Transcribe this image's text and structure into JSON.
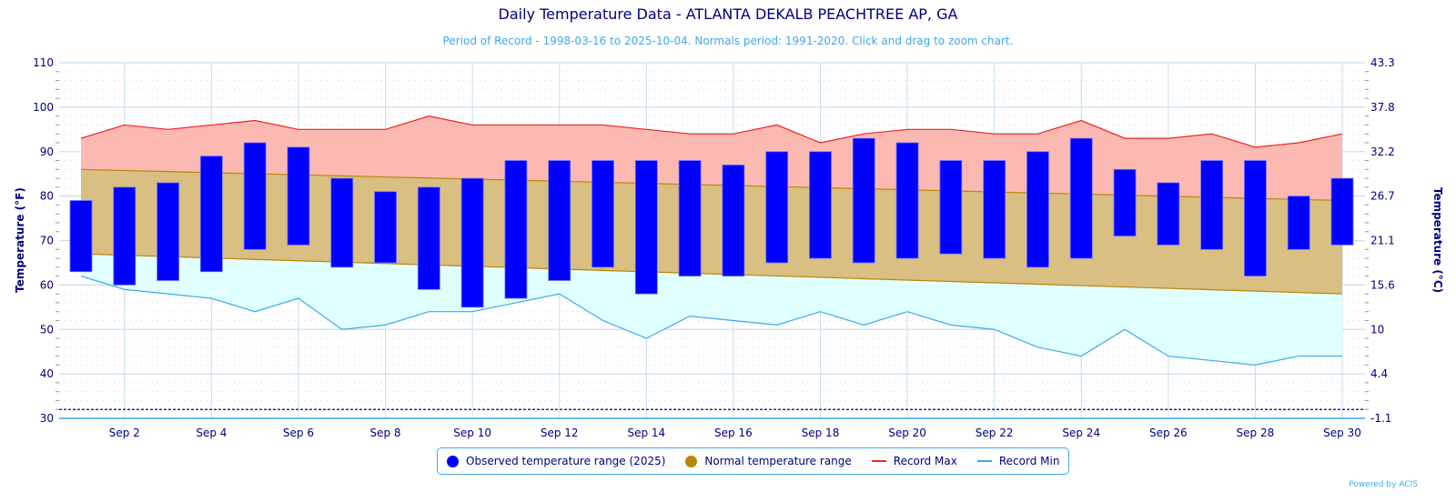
{
  "header": {
    "title": "Daily Temperature Data - ATLANTA DEKALB PEACHTREE AP, GA",
    "subtitle": "Period of Record - 1998-03-16 to 2025-10-04. Normals period: 1991-2020. Click and drag to zoom chart."
  },
  "credits": "Powered by ACIS",
  "colors": {
    "observed": "#0000ff",
    "normal_fill": "#d9bf81",
    "normal_line": "#b8860b",
    "record_max_line": "#ee2222",
    "record_max_fill": "#fcb9b2",
    "record_min_line": "#3fa9e8",
    "record_min_fill": "#e0ffff",
    "axis_text": "#000080",
    "grid": "#c6def0",
    "freeze_line": "#000090"
  },
  "legend": {
    "items": [
      {
        "label": "Observed temperature range (2025)",
        "symbol": "dot",
        "color": "#0000ff"
      },
      {
        "label": "Normal temperature range",
        "symbol": "dot",
        "color": "#b8860b"
      },
      {
        "label": "Record Max",
        "symbol": "line",
        "color": "#ee2222"
      },
      {
        "label": "Record Min",
        "symbol": "line",
        "color": "#3fa9e8"
      }
    ]
  },
  "chart_data": {
    "type": "bar",
    "title": "Daily Temperature Data - ATLANTA DEKALB PEACHTREE AP, GA",
    "subtitle": "Period of Record - 1998-03-16 to 2025-10-04. Normals period: 1991-2020. Click and drag to zoom chart.",
    "xlabel": "",
    "ylabel": "Temperature (°F)",
    "ylabel_right": "Temperature (°C)",
    "ylim": [
      30,
      110
    ],
    "yticks": [
      30,
      40,
      50,
      60,
      70,
      80,
      90,
      100,
      110
    ],
    "yticks_right": [
      "-1.1",
      "4.4",
      "10",
      "15.6",
      "21.1",
      "26.7",
      "32.2",
      "37.8",
      "43.3"
    ],
    "freezing_line": 32,
    "x": [
      1,
      2,
      3,
      4,
      5,
      6,
      7,
      8,
      9,
      10,
      11,
      12,
      13,
      14,
      15,
      16,
      17,
      18,
      19,
      20,
      21,
      22,
      23,
      24,
      25,
      26,
      27,
      28,
      29,
      30
    ],
    "x_tick_labels": [
      "Sep 2",
      "Sep 4",
      "Sep 6",
      "Sep 8",
      "Sep 10",
      "Sep 12",
      "Sep 14",
      "Sep 16",
      "Sep 18",
      "Sep 20",
      "Sep 22",
      "Sep 24",
      "Sep 26",
      "Sep 28",
      "Sep 30"
    ],
    "x_tick_days": [
      2,
      4,
      6,
      8,
      10,
      12,
      14,
      16,
      18,
      20,
      22,
      24,
      26,
      28,
      30
    ],
    "grid": true,
    "legend_position": "bottom-center",
    "series": [
      {
        "name": "Observed temperature range (2025)",
        "kind": "range-bar",
        "high": [
          79,
          82,
          83,
          89,
          92,
          91,
          84,
          81,
          82,
          84,
          88,
          88,
          88,
          88,
          88,
          87,
          90,
          90,
          93,
          92,
          88,
          88,
          90,
          93,
          86,
          83,
          88,
          88,
          80,
          84
        ],
        "low": [
          63,
          60,
          61,
          63,
          68,
          69,
          64,
          65,
          59,
          55,
          57,
          61,
          64,
          58,
          62,
          62,
          65,
          66,
          65,
          66,
          67,
          66,
          64,
          66,
          71,
          69,
          68,
          62,
          68,
          69
        ]
      },
      {
        "name": "Normal temperature range",
        "kind": "range-area",
        "high_start": 86,
        "high_end": 79,
        "low_start": 67,
        "low_end": 58
      },
      {
        "name": "Record Max",
        "kind": "line",
        "values": [
          93,
          96,
          95,
          96,
          97,
          95,
          95,
          95,
          98,
          96,
          96,
          96,
          96,
          95,
          94,
          94,
          96,
          92,
          94,
          95,
          95,
          94,
          94,
          97,
          93,
          93,
          94,
          91,
          92,
          94
        ]
      },
      {
        "name": "Record Min",
        "kind": "line",
        "values": [
          62,
          59,
          58,
          57,
          54,
          57,
          50,
          51,
          54,
          54,
          56,
          58,
          52,
          48,
          53,
          52,
          51,
          54,
          51,
          54,
          51,
          50,
          46,
          44,
          50,
          44,
          43,
          42,
          44,
          44
        ]
      }
    ]
  }
}
